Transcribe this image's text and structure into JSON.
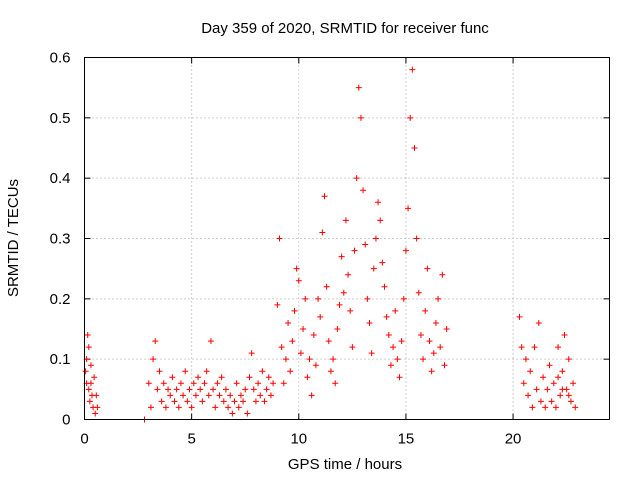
{
  "chart_data": {
    "type": "scatter",
    "title": "Day 359 of 2020, SRMTID for receiver func",
    "xlabel": "GPS time / hours",
    "ylabel": "SRMTID / TECUs",
    "xlim": [
      0,
      24.5
    ],
    "ylim": [
      0,
      0.6
    ],
    "xticks": [
      0,
      5,
      10,
      15,
      20
    ],
    "yticks": [
      0,
      0.1,
      0.2,
      0.3,
      0.4,
      0.5,
      0.6
    ],
    "xtick_labels": [
      "0",
      "5",
      "10",
      "15",
      "20"
    ],
    "ytick_labels": [
      "0",
      "0.1",
      "0.2",
      "0.3",
      "0.4",
      "0.5",
      "0.6"
    ],
    "grid": true,
    "marker": "+",
    "color": "#ff0000",
    "series": [
      {
        "name": "SRMTID",
        "points": [
          [
            0.05,
            0.08
          ],
          [
            0.1,
            0.06
          ],
          [
            0.15,
            0.14
          ],
          [
            0.2,
            0.05
          ],
          [
            0.25,
            0.03
          ],
          [
            0.3,
            0.09
          ],
          [
            0.35,
            0.04
          ],
          [
            0.4,
            0.02
          ],
          [
            0.45,
            0.07
          ],
          [
            0.5,
            0.01
          ],
          [
            0.55,
            0.04
          ],
          [
            0.6,
            0.02
          ],
          [
            0.1,
            0.1
          ],
          [
            0.2,
            0.12
          ],
          [
            0.3,
            0.06
          ],
          [
            2.8,
            0.0
          ],
          [
            3.0,
            0.06
          ],
          [
            3.1,
            0.02
          ],
          [
            3.2,
            0.1
          ],
          [
            3.3,
            0.13
          ],
          [
            3.4,
            0.05
          ],
          [
            3.5,
            0.08
          ],
          [
            3.6,
            0.03
          ],
          [
            3.7,
            0.06
          ],
          [
            3.8,
            0.02
          ],
          [
            3.9,
            0.05
          ],
          [
            4.0,
            0.04
          ],
          [
            4.1,
            0.07
          ],
          [
            4.2,
            0.03
          ],
          [
            4.3,
            0.05
          ],
          [
            4.4,
            0.02
          ],
          [
            4.5,
            0.06
          ],
          [
            4.6,
            0.04
          ],
          [
            4.7,
            0.08
          ],
          [
            4.8,
            0.03
          ],
          [
            4.9,
            0.05
          ],
          [
            5.0,
            0.02
          ],
          [
            5.1,
            0.06
          ],
          [
            5.2,
            0.04
          ],
          [
            5.3,
            0.07
          ],
          [
            5.4,
            0.05
          ],
          [
            5.5,
            0.03
          ],
          [
            5.6,
            0.06
          ],
          [
            5.7,
            0.08
          ],
          [
            5.8,
            0.04
          ],
          [
            5.9,
            0.13
          ],
          [
            6.0,
            0.05
          ],
          [
            6.1,
            0.02
          ],
          [
            6.2,
            0.06
          ],
          [
            6.3,
            0.04
          ],
          [
            6.4,
            0.07
          ],
          [
            6.5,
            0.03
          ],
          [
            6.6,
            0.05
          ],
          [
            6.7,
            0.02
          ],
          [
            6.8,
            0.04
          ],
          [
            6.9,
            0.01
          ],
          [
            7.0,
            0.03
          ],
          [
            7.1,
            0.06
          ],
          [
            7.2,
            0.02
          ],
          [
            7.3,
            0.04
          ],
          [
            7.4,
            0.03
          ],
          [
            7.5,
            0.05
          ],
          [
            7.6,
            0.01
          ],
          [
            7.7,
            0.07
          ],
          [
            7.8,
            0.11
          ],
          [
            7.9,
            0.05
          ],
          [
            8.0,
            0.03
          ],
          [
            8.1,
            0.06
          ],
          [
            8.2,
            0.04
          ],
          [
            8.3,
            0.08
          ],
          [
            8.4,
            0.03
          ],
          [
            8.5,
            0.05
          ],
          [
            8.6,
            0.07
          ],
          [
            8.7,
            0.04
          ],
          [
            8.8,
            0.06
          ],
          [
            9.0,
            0.19
          ],
          [
            9.1,
            0.3
          ],
          [
            9.2,
            0.12
          ],
          [
            9.3,
            0.06
          ],
          [
            9.4,
            0.1
          ],
          [
            9.5,
            0.16
          ],
          [
            9.6,
            0.08
          ],
          [
            9.7,
            0.13
          ],
          [
            9.8,
            0.18
          ],
          [
            9.9,
            0.25
          ],
          [
            10.0,
            0.23
          ],
          [
            10.1,
            0.11
          ],
          [
            10.2,
            0.15
          ],
          [
            10.3,
            0.2
          ],
          [
            10.4,
            0.07
          ],
          [
            10.5,
            0.1
          ],
          [
            10.6,
            0.04
          ],
          [
            10.7,
            0.14
          ],
          [
            10.8,
            0.09
          ],
          [
            10.9,
            0.2
          ],
          [
            11.0,
            0.17
          ],
          [
            11.1,
            0.31
          ],
          [
            11.2,
            0.37
          ],
          [
            11.3,
            0.22
          ],
          [
            11.4,
            0.13
          ],
          [
            11.5,
            0.08
          ],
          [
            11.6,
            0.1
          ],
          [
            11.7,
            0.06
          ],
          [
            11.8,
            0.15
          ],
          [
            11.9,
            0.19
          ],
          [
            12.0,
            0.27
          ],
          [
            12.1,
            0.21
          ],
          [
            12.2,
            0.33
          ],
          [
            12.3,
            0.24
          ],
          [
            12.4,
            0.18
          ],
          [
            12.5,
            0.12
          ],
          [
            12.6,
            0.28
          ],
          [
            12.7,
            0.4
          ],
          [
            12.8,
            0.55
          ],
          [
            12.9,
            0.5
          ],
          [
            13.0,
            0.38
          ],
          [
            13.1,
            0.29
          ],
          [
            13.2,
            0.2
          ],
          [
            13.3,
            0.16
          ],
          [
            13.4,
            0.11
          ],
          [
            13.5,
            0.25
          ],
          [
            13.6,
            0.3
          ],
          [
            13.7,
            0.36
          ],
          [
            13.8,
            0.33
          ],
          [
            13.9,
            0.26
          ],
          [
            14.0,
            0.22
          ],
          [
            14.1,
            0.17
          ],
          [
            14.2,
            0.14
          ],
          [
            14.3,
            0.09
          ],
          [
            14.4,
            0.12
          ],
          [
            14.5,
            0.18
          ],
          [
            14.6,
            0.1
          ],
          [
            14.7,
            0.07
          ],
          [
            14.8,
            0.13
          ],
          [
            14.9,
            0.2
          ],
          [
            15.0,
            0.28
          ],
          [
            15.1,
            0.35
          ],
          [
            15.2,
            0.5
          ],
          [
            15.3,
            0.58
          ],
          [
            15.4,
            0.45
          ],
          [
            15.5,
            0.3
          ],
          [
            15.6,
            0.21
          ],
          [
            15.7,
            0.14
          ],
          [
            15.8,
            0.1
          ],
          [
            15.9,
            0.18
          ],
          [
            16.0,
            0.25
          ],
          [
            16.1,
            0.13
          ],
          [
            16.2,
            0.08
          ],
          [
            16.3,
            0.11
          ],
          [
            16.4,
            0.16
          ],
          [
            16.5,
            0.2
          ],
          [
            16.6,
            0.12
          ],
          [
            16.7,
            0.24
          ],
          [
            16.8,
            0.09
          ],
          [
            16.9,
            0.15
          ],
          [
            20.3,
            0.17
          ],
          [
            20.4,
            0.12
          ],
          [
            20.5,
            0.06
          ],
          [
            20.6,
            0.1
          ],
          [
            20.7,
            0.04
          ],
          [
            20.8,
            0.08
          ],
          [
            20.9,
            0.02
          ],
          [
            21.0,
            0.12
          ],
          [
            21.1,
            0.05
          ],
          [
            21.2,
            0.16
          ],
          [
            21.3,
            0.03
          ],
          [
            21.4,
            0.07
          ],
          [
            21.5,
            0.02
          ],
          [
            21.6,
            0.05
          ],
          [
            21.7,
            0.09
          ],
          [
            21.8,
            0.03
          ],
          [
            21.9,
            0.06
          ],
          [
            22.0,
            0.02
          ],
          [
            22.1,
            0.12
          ],
          [
            22.2,
            0.04
          ],
          [
            22.3,
            0.08
          ],
          [
            22.4,
            0.14
          ],
          [
            22.5,
            0.05
          ],
          [
            22.6,
            0.1
          ],
          [
            22.7,
            0.03
          ],
          [
            22.8,
            0.06
          ],
          [
            22.9,
            0.02
          ],
          [
            22.1,
            0.07
          ],
          [
            22.3,
            0.05
          ],
          [
            22.6,
            0.04
          ]
        ]
      }
    ]
  }
}
